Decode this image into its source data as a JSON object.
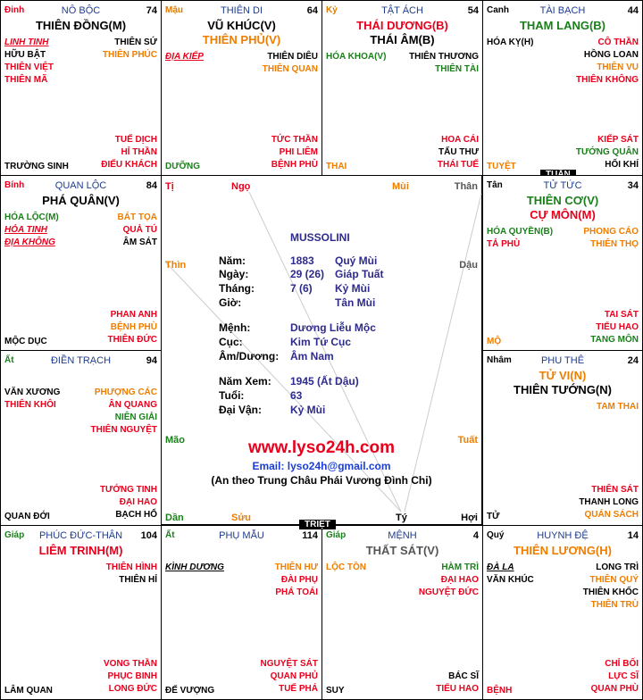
{
  "colors": {
    "palace_name": "#1f3c8c",
    "can_orange": "#e07b00",
    "can_red": "#e8001c",
    "can_green": "#1a7f1a",
    "star_red": "#e8001c",
    "star_green": "#1a7f1a",
    "star_orange": "#ef7d00",
    "star_black": "#000000",
    "info_value": "#2e2b8c",
    "website": "#e8001c",
    "email": "#1a3fd6"
  },
  "cells": [
    {
      "id": "ty",
      "can": "Đinh",
      "can_color": "#e8001c",
      "palace": "NÔ BỘC",
      "number": "74",
      "main_stars": [
        {
          "text": "THIÊN ĐỒNG(M)",
          "color": "#000000"
        }
      ],
      "left": [
        {
          "text": "LINH TINH",
          "color": "#e8001c",
          "style": "italic-underline"
        },
        {
          "text": "HỮU BẬT",
          "color": "#000000"
        },
        {
          "text": "THIÊN VIỆT",
          "color": "#e8001c"
        },
        {
          "text": "THIÊN MÃ",
          "color": "#e8001c"
        }
      ],
      "right": [
        {
          "text": "THIÊN SỨ",
          "color": "#000000"
        },
        {
          "text": "THIÊN PHÚC",
          "color": "#ef7d00"
        }
      ],
      "right_bottom": [
        {
          "text": "TUẾ DỊCH",
          "color": "#e8001c"
        },
        {
          "text": "HỈ THẦN",
          "color": "#e8001c"
        },
        {
          "text": "ĐIẾU KHÁCH",
          "color": "#e8001c"
        }
      ],
      "bottom_left": {
        "text": "TRƯỜNG SINH",
        "color": "#000000"
      }
    },
    {
      "id": "ngo",
      "can": "Mậu",
      "can_color": "#e07b00",
      "palace": "THIÊN DI",
      "number": "64",
      "main_stars": [
        {
          "text": "VŨ KHÚC(V)",
          "color": "#000000"
        },
        {
          "text": "THIÊN PHỦ(V)",
          "color": "#ef7d00"
        }
      ],
      "left": [
        {
          "text": "ĐỊA KIẾP",
          "color": "#e8001c",
          "style": "italic-underline"
        }
      ],
      "right": [
        {
          "text": "THIÊN DIÊU",
          "color": "#000000"
        },
        {
          "text": "THIÊN QUAN",
          "color": "#ef7d00"
        }
      ],
      "right_bottom": [
        {
          "text": "TỨC THẦN",
          "color": "#e8001c"
        },
        {
          "text": "PHI LIÊM",
          "color": "#e8001c"
        },
        {
          "text": "BỆNH PHÙ",
          "color": "#e8001c"
        }
      ],
      "bottom_left": {
        "text": "DƯỠNG",
        "color": "#1a7f1a"
      }
    },
    {
      "id": "mui",
      "can": "Kỷ",
      "can_color": "#e07b00",
      "palace": "TẬT ÁCH",
      "number": "54",
      "main_stars": [
        {
          "text": "THÁI DƯƠNG(B)",
          "color": "#e8001c"
        },
        {
          "text": "THÁI ÂM(B)",
          "color": "#000000"
        }
      ],
      "left": [
        {
          "text": "HÓA KHOA(V)",
          "color": "#1a7f1a"
        }
      ],
      "right": [
        {
          "text": "THIÊN THƯƠNG",
          "color": "#000000"
        },
        {
          "text": "THIÊN TÀI",
          "color": "#1a7f1a"
        }
      ],
      "right_bottom": [
        {
          "text": "HOA CÁI",
          "color": "#e8001c"
        },
        {
          "text": "TẤU THƯ",
          "color": "#000000"
        },
        {
          "text": "THÁI TUẾ",
          "color": "#e8001c"
        }
      ],
      "bottom_left": {
        "text": "THAI",
        "color": "#ef7d00"
      }
    },
    {
      "id": "than",
      "can": "Canh",
      "can_color": "#000000",
      "palace": "TÀI BẠCH",
      "number": "44",
      "main_stars": [
        {
          "text": "THAM LANG(B)",
          "color": "#1a7f1a"
        }
      ],
      "left": [
        {
          "text": "HÓA KỴ(H)",
          "color": "#000000"
        }
      ],
      "right": [
        {
          "text": "CÔ THẦN",
          "color": "#e8001c"
        },
        {
          "text": "HỒNG LOAN",
          "color": "#000000"
        },
        {
          "text": "THIÊN VU",
          "color": "#ef7d00"
        },
        {
          "text": "THIÊN KHÔNG",
          "color": "#e8001c"
        }
      ],
      "right_bottom": [
        {
          "text": "KIẾP SÁT",
          "color": "#e8001c"
        },
        {
          "text": "TƯỚNG QUÂN",
          "color": "#1a7f1a"
        },
        {
          "text": "HỐI KHÍ",
          "color": "#000000"
        }
      ],
      "bottom_left": {
        "text": "TUYỆT",
        "color": "#ef7d00"
      },
      "tag": "TUẦN"
    },
    {
      "id": "thin",
      "can": "Bính",
      "can_color": "#e8001c",
      "palace": "QUAN LỘC",
      "number": "84",
      "main_stars": [
        {
          "text": "PHÁ QUÂN(V)",
          "color": "#000000"
        }
      ],
      "left": [
        {
          "text": "HÓA LỘC(M)",
          "color": "#1a7f1a"
        },
        {
          "text": "HỎA TINH",
          "color": "#e8001c",
          "style": "italic-underline"
        },
        {
          "text": "ĐỊA KHÔNG",
          "color": "#e8001c",
          "style": "italic-underline"
        }
      ],
      "right": [
        {
          "text": "BÁT TỌA",
          "color": "#ef7d00"
        },
        {
          "text": "QUẢ TÚ",
          "color": "#e8001c"
        },
        {
          "text": "ÂM SÁT",
          "color": "#000000"
        }
      ],
      "right_bottom": [
        {
          "text": "PHAN ANH",
          "color": "#e8001c"
        },
        {
          "text": "BỆNH PHÙ",
          "color": "#ef7d00"
        },
        {
          "text": "THIÊN ĐỨC",
          "color": "#e8001c"
        }
      ],
      "bottom_left": {
        "text": "MỘC DỤC",
        "color": "#000000"
      }
    },
    {
      "id": "dau",
      "can": "Tân",
      "can_color": "#000000",
      "palace": "TỬ TỨC",
      "number": "34",
      "main_stars": [
        {
          "text": "THIÊN CƠ(V)",
          "color": "#1a7f1a"
        },
        {
          "text": "CỰ MÔN(M)",
          "color": "#e8001c"
        }
      ],
      "left": [
        {
          "text": "HÓA QUYỀN(B)",
          "color": "#1a7f1a"
        },
        {
          "text": "TẢ PHÙ",
          "color": "#e8001c"
        }
      ],
      "right": [
        {
          "text": "PHONG CÁO",
          "color": "#ef7d00"
        },
        {
          "text": "THIÊN THỌ",
          "color": "#ef7d00"
        }
      ],
      "right_bottom": [
        {
          "text": "TAI SÁT",
          "color": "#e8001c"
        },
        {
          "text": "TIỂU HAO",
          "color": "#e8001c"
        },
        {
          "text": "TANG MÔN",
          "color": "#1a7f1a"
        }
      ],
      "bottom_left": {
        "text": "MỘ",
        "color": "#ef7d00"
      }
    },
    {
      "id": "mao",
      "can": "Ất",
      "can_color": "#1a7f1a",
      "palace": "ĐIỀN TRẠCH",
      "number": "94",
      "main_stars": [],
      "left": [
        {
          "text": "VĂN XƯƠNG",
          "color": "#000000"
        },
        {
          "text": "THIÊN KHÔI",
          "color": "#e8001c"
        }
      ],
      "right": [
        {
          "text": "PHƯỢNG CÁC",
          "color": "#ef7d00"
        },
        {
          "text": "ÂN QUANG",
          "color": "#e8001c"
        },
        {
          "text": "NIÊN GIẢI",
          "color": "#1a7f1a"
        },
        {
          "text": "THIÊN NGUYỆT",
          "color": "#e8001c"
        }
      ],
      "right_bottom": [
        {
          "text": "TƯỚNG TINH",
          "color": "#e8001c"
        },
        {
          "text": "ĐẠI HAO",
          "color": "#e8001c"
        },
        {
          "text": "BẠCH HỔ",
          "color": "#000000"
        }
      ],
      "bottom_left": {
        "text": "QUAN ĐỚI",
        "color": "#000000"
      }
    },
    {
      "id": "tuat",
      "can": "Nhâm",
      "can_color": "#000000",
      "palace": "PHU THÊ",
      "number": "24",
      "main_stars": [
        {
          "text": "TỬ VI(N)",
          "color": "#ef7d00"
        },
        {
          "text": "THIÊN TƯỚNG(N)",
          "color": "#000000"
        }
      ],
      "left": [],
      "right": [
        {
          "text": "TAM THAI",
          "color": "#ef7d00"
        }
      ],
      "right_bottom": [
        {
          "text": "THIÊN SÁT",
          "color": "#e8001c"
        },
        {
          "text": "THANH LONG",
          "color": "#000000"
        },
        {
          "text": "QUÁN SÁCH",
          "color": "#ef7d00"
        }
      ],
      "bottom_left": {
        "text": "TỬ",
        "color": "#000000"
      }
    },
    {
      "id": "dan",
      "can": "Giáp",
      "can_color": "#1a7f1a",
      "palace": "PHÚC ĐỨC-THÂN",
      "number": "104",
      "main_stars": [
        {
          "text": "LIÊM TRINH(M)",
          "color": "#e8001c"
        }
      ],
      "left": [],
      "right": [
        {
          "text": "THIÊN HÌNH",
          "color": "#e8001c"
        },
        {
          "text": "THIÊN HỈ",
          "color": "#000000"
        }
      ],
      "right_bottom": [
        {
          "text": "VONG THẦN",
          "color": "#e8001c"
        },
        {
          "text": "PHỤC BINH",
          "color": "#e8001c"
        },
        {
          "text": "LONG ĐỨC",
          "color": "#e8001c"
        }
      ],
      "bottom_left": {
        "text": "LÂM QUAN",
        "color": "#000000"
      }
    },
    {
      "id": "suu",
      "can": "Ất",
      "can_color": "#1a7f1a",
      "palace": "PHỤ MẪU",
      "number": "114",
      "main_stars": [],
      "left": [
        {
          "text": "KÌNH DƯƠNG",
          "color": "#000000",
          "style": "italic-underline"
        }
      ],
      "right": [
        {
          "text": "THIÊN HƯ",
          "color": "#ef7d00"
        },
        {
          "text": "ĐÀI PHỤ",
          "color": "#e8001c"
        },
        {
          "text": "PHÁ TOÁI",
          "color": "#e8001c"
        }
      ],
      "right_bottom": [
        {
          "text": "NGUYỆT SÁT",
          "color": "#e8001c"
        },
        {
          "text": "QUAN PHỦ",
          "color": "#e8001c"
        },
        {
          "text": "TUẾ PHÁ",
          "color": "#e8001c"
        }
      ],
      "bottom_left": {
        "text": "ĐẾ VƯỢNG",
        "color": "#000000"
      }
    },
    {
      "id": "ty2",
      "can": "Giáp",
      "can_color": "#1a7f1a",
      "palace": "MỆNH",
      "number": "4",
      "main_stars": [
        {
          "text": "THẤT SÁT(V)",
          "color": "#555555"
        }
      ],
      "left": [
        {
          "text": "LỘC TỒN",
          "color": "#ef7d00"
        }
      ],
      "right": [
        {
          "text": "HÀM TRÌ",
          "color": "#1a7f1a"
        },
        {
          "text": "ĐẠI HAO",
          "color": "#e8001c"
        },
        {
          "text": "NGUYỆT ĐỨC",
          "color": "#e8001c"
        }
      ],
      "right_bottom": [
        {
          "text": "BÁC SĨ",
          "color": "#000000"
        },
        {
          "text": "TIỂU HAO",
          "color": "#e8001c"
        }
      ],
      "bottom_left": {
        "text": "SUY",
        "color": "#000000"
      },
      "tag": "TRIỆT"
    },
    {
      "id": "hoi",
      "can": "Quý",
      "can_color": "#000000",
      "palace": "HUYNH ĐỆ",
      "number": "14",
      "main_stars": [
        {
          "text": "THIÊN LƯƠNG(H)",
          "color": "#ef7d00"
        }
      ],
      "left": [
        {
          "text": "ĐÀ LA",
          "color": "#000000",
          "style": "italic-underline"
        },
        {
          "text": "VĂN KHÚC",
          "color": "#000000"
        }
      ],
      "right": [
        {
          "text": "LONG TRÌ",
          "color": "#000000"
        },
        {
          "text": "THIÊN QUÝ",
          "color": "#ef7d00"
        },
        {
          "text": "THIÊN KHỐC",
          "color": "#000000"
        },
        {
          "text": "THIÊN TRÙ",
          "color": "#ef7d00"
        }
      ],
      "right_bottom": [
        {
          "text": "CHỈ BỐI",
          "color": "#e8001c"
        },
        {
          "text": "LỰC SĨ",
          "color": "#e8001c"
        },
        {
          "text": "QUAN PHÙ",
          "color": "#e8001c"
        }
      ],
      "bottom_left": {
        "text": "BỆNH",
        "color": "#e8001c"
      }
    }
  ],
  "branches": {
    "ti": {
      "text": "Tị",
      "color": "#e8001c"
    },
    "ngo": {
      "text": "Ngọ",
      "color": "#e8001c"
    },
    "mui": {
      "text": "Mùi",
      "color": "#ef7d00"
    },
    "than": {
      "text": "Thân",
      "color": "#555555"
    },
    "thin": {
      "text": "Thìn",
      "color": "#ef7d00"
    },
    "dau": {
      "text": "Dậu",
      "color": "#555555"
    },
    "mao": {
      "text": "Mão",
      "color": "#1a7f1a"
    },
    "tuat": {
      "text": "Tuất",
      "color": "#ef7d00"
    },
    "dan": {
      "text": "Dần",
      "color": "#1a7f1a"
    },
    "suu": {
      "text": "Sửu",
      "color": "#ef7d00"
    },
    "ty": {
      "text": "Tý",
      "color": "#000000"
    },
    "hoi": {
      "text": "Hợi",
      "color": "#000000"
    }
  },
  "info": {
    "name": "MUSSOLINI",
    "nam_label": "Năm:",
    "nam_value": "1883",
    "nam_canchi": "Quý Mùi",
    "ngay_label": "Ngày:",
    "ngay_value": "29 (26)",
    "ngay_canchi": "Giáp Tuất",
    "thang_label": "Tháng:",
    "thang_value": "7 (6)",
    "thang_canchi": "Kỷ Mùi",
    "gio_label": "Giờ:",
    "gio_canchi": "Tân Mùi",
    "menh_label": "Mệnh:",
    "menh_value": "Dương Liễu Mộc",
    "cuc_label": "Cục:",
    "cuc_value": "Kim Tứ Cục",
    "amduong_label": "Âm/Dương:",
    "amduong_value": "Âm Nam",
    "namxem_label": "Năm Xem:",
    "namxem_value": "1945 (Ất Dậu)",
    "tuoi_label": "Tuổi:",
    "tuoi_value": "63",
    "daivan_label": "Đại Vận:",
    "daivan_value": "Kỷ Mùi"
  },
  "footer": {
    "website": "www.lyso24h.com",
    "email": "Email: lyso24h@gmail.com",
    "note": "(An theo Trung Châu Phái Vương Đình Chi)"
  }
}
